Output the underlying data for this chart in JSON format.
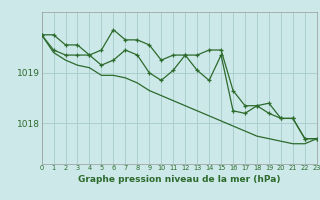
{
  "title": "Graphe pression niveau de la mer (hPa)",
  "bg_color": "#cce8e8",
  "grid_color": "#aacfcf",
  "line_color": "#2d6b2d",
  "hours": [
    0,
    1,
    2,
    3,
    4,
    5,
    6,
    7,
    8,
    9,
    10,
    11,
    12,
    13,
    14,
    15,
    16,
    17,
    18,
    19,
    20,
    21,
    22,
    23
  ],
  "line1": [
    1019.75,
    1019.75,
    1019.55,
    1019.55,
    1019.35,
    1019.45,
    1019.85,
    1019.65,
    1019.65,
    1019.55,
    1019.25,
    1019.35,
    1019.35,
    1019.35,
    1019.45,
    1019.45,
    1018.65,
    1018.35,
    1018.35,
    1018.4,
    1018.1,
    1018.1,
    1017.7,
    1017.7
  ],
  "line2": [
    1019.75,
    1019.45,
    1019.35,
    1019.35,
    1019.35,
    1019.15,
    1019.25,
    1019.45,
    1019.35,
    1019.0,
    1018.85,
    1019.05,
    1019.35,
    1019.05,
    1018.85,
    1019.35,
    1018.25,
    1018.2,
    1018.35,
    1018.2,
    1018.1,
    1018.1,
    1017.7,
    1017.7
  ],
  "line3": [
    1019.75,
    1019.4,
    1019.25,
    1019.15,
    1019.1,
    1018.95,
    1018.95,
    1018.9,
    1018.8,
    1018.65,
    1018.55,
    1018.45,
    1018.35,
    1018.25,
    1018.15,
    1018.05,
    1017.95,
    1017.85,
    1017.75,
    1017.7,
    1017.65,
    1017.6,
    1017.6,
    1017.7
  ],
  "yticks": [
    1018,
    1019
  ],
  "ylim": [
    1017.2,
    1020.2
  ],
  "xlim": [
    0,
    23
  ]
}
